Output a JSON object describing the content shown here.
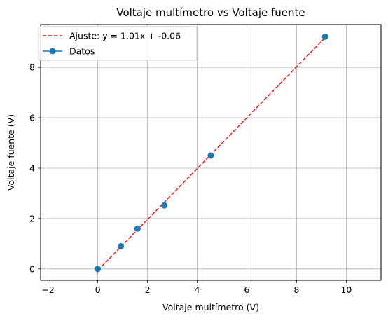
{
  "chart_data": {
    "type": "scatter",
    "title": "Voltaje multímetro vs Voltaje fuente",
    "xlabel": "Voltaje multímetro (V)",
    "ylabel": "Voltaje fuente (V)",
    "xlim": [
      -2.3,
      11.4
    ],
    "ylim": [
      -0.45,
      9.7
    ],
    "xticks": [
      -2,
      0,
      2,
      4,
      6,
      8,
      10
    ],
    "yticks": [
      0,
      2,
      4,
      6,
      8
    ],
    "xtick_labels": [
      "−2",
      "0",
      "2",
      "4",
      "6",
      "8",
      "10"
    ],
    "ytick_labels": [
      "0",
      "2",
      "4",
      "6",
      "8"
    ],
    "grid": true,
    "legend_position": "top-left",
    "fit": {
      "name": "Ajuste: y = 1.01x + -0.06",
      "slope": 1.01,
      "intercept": -0.06,
      "x_range": [
        0,
        9.15
      ],
      "color": "#e8201c",
      "style": "dashed"
    },
    "series": [
      {
        "name": "Datos",
        "color": "#1f77b4",
        "points": [
          {
            "x": 0.0,
            "y": 0.0
          },
          {
            "x": 0.93,
            "y": 0.9
          },
          {
            "x": 1.6,
            "y": 1.6
          },
          {
            "x": 2.68,
            "y": 2.52
          },
          {
            "x": 4.55,
            "y": 4.5
          },
          {
            "x": 9.15,
            "y": 9.22
          }
        ]
      }
    ]
  }
}
